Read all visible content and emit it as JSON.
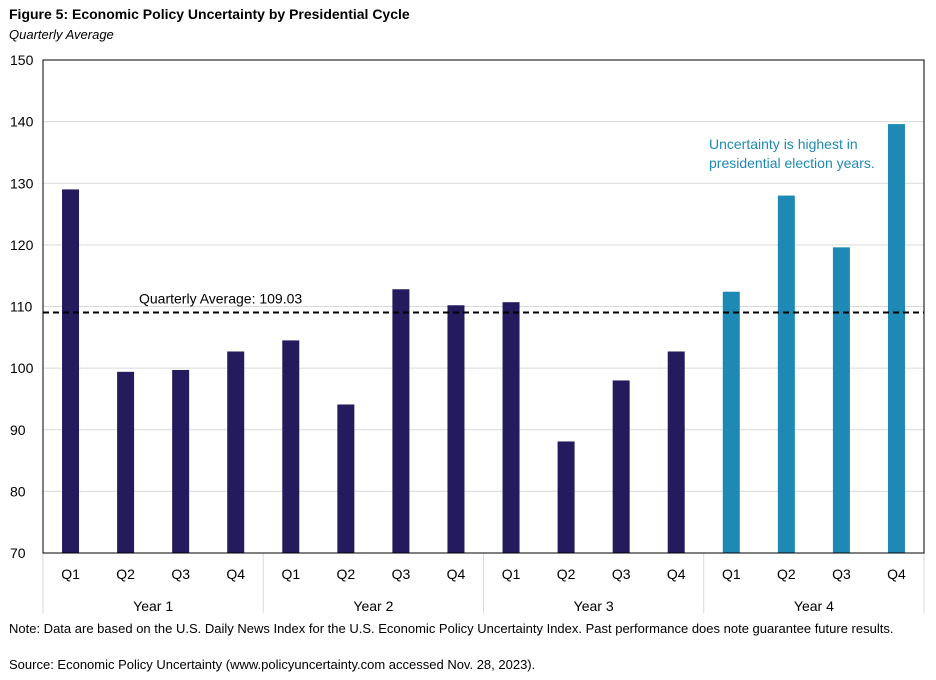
{
  "title": "Figure 5: Economic Policy Uncertainty by Presidential Cycle",
  "subtitle": "Quarterly Average",
  "note": "Note: Data are based on the U.S. Daily News Index for the U.S. Economic Policy Uncertainty Index. Past performance does note guarantee future results.",
  "source": "Source: Economic Policy Uncertainty (www.policyuncertainty.com accessed Nov. 28, 2023).",
  "chart_data": {
    "type": "bar",
    "title": "Figure 5: Economic Policy Uncertainty by Presidential Cycle",
    "subtitle": "Quarterly Average",
    "ylim": [
      70,
      150
    ],
    "yticks": [
      70,
      80,
      90,
      100,
      110,
      120,
      130,
      140,
      150
    ],
    "grid": true,
    "groups": [
      {
        "label": "Year 1",
        "categories": [
          "Q1",
          "Q2",
          "Q3",
          "Q4"
        ],
        "values": [
          129.0,
          99.4,
          99.7,
          102.7
        ],
        "color": "#241a5e"
      },
      {
        "label": "Year 2",
        "categories": [
          "Q1",
          "Q2",
          "Q3",
          "Q4"
        ],
        "values": [
          104.5,
          94.1,
          112.8,
          110.2
        ],
        "color": "#241a5e"
      },
      {
        "label": "Year 3",
        "categories": [
          "Q1",
          "Q2",
          "Q3",
          "Q4"
        ],
        "values": [
          110.7,
          88.1,
          98.0,
          102.7
        ],
        "color": "#241a5e"
      },
      {
        "label": "Year 4",
        "categories": [
          "Q1",
          "Q2",
          "Q3",
          "Q4"
        ],
        "values": [
          112.4,
          128.0,
          119.6,
          139.6
        ],
        "color": "#1f89b5"
      }
    ],
    "reference_line": {
      "value": 109.03,
      "label": "Quarterly Average: 109.03",
      "style": "dashed"
    },
    "annotation": {
      "lines": [
        "Uncertainty is highest in",
        "presidential election years."
      ],
      "color": "#1f89b5"
    }
  }
}
